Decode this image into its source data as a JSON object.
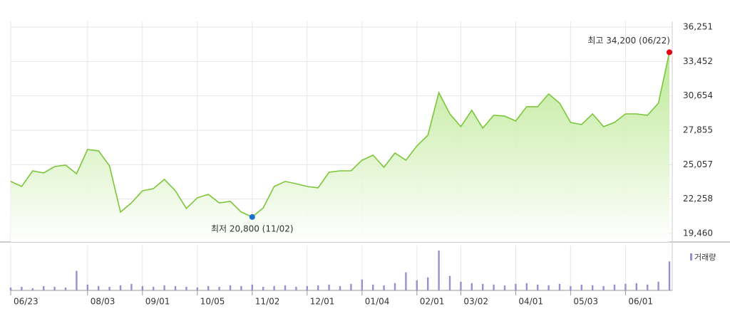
{
  "chart_data": {
    "type": "line",
    "categories": [
      "06/23",
      null,
      null,
      null,
      null,
      null,
      null,
      "08/03",
      null,
      null,
      null,
      null,
      "09/01",
      null,
      null,
      null,
      null,
      "10/05",
      null,
      null,
      null,
      null,
      "11/02",
      null,
      null,
      null,
      null,
      "12/01",
      null,
      null,
      null,
      null,
      "01/04",
      null,
      null,
      null,
      null,
      "02/01",
      null,
      null,
      null,
      "03/02",
      null,
      null,
      null,
      null,
      "04/01",
      null,
      null,
      null,
      null,
      "05/03",
      null,
      null,
      null,
      null,
      "06/01",
      null,
      null,
      null,
      null
    ],
    "values": [
      23690,
      23280,
      24555,
      24380,
      24900,
      25020,
      24320,
      26290,
      26180,
      24960,
      21200,
      21950,
      22930,
      23110,
      23860,
      22930,
      21490,
      22360,
      22640,
      21950,
      22070,
      21200,
      20800,
      21540,
      23280,
      23690,
      23510,
      23280,
      23170,
      24440,
      24555,
      24555,
      25420,
      25830,
      24845,
      26000,
      25420,
      26580,
      27450,
      30920,
      29190,
      28150,
      29480,
      28030,
      29070,
      29010,
      28610,
      29770,
      29770,
      30810,
      30060,
      28490,
      28320,
      29190,
      28150,
      28490,
      29190,
      29190,
      29070,
      30060,
      34200
    ],
    "color": "#7cc63a",
    "ylim": [
      19460,
      36251
    ],
    "yticks": [
      {
        "value": 36251,
        "label": "36,251"
      },
      {
        "value": 33452,
        "label": "33,452"
      },
      {
        "value": 30654,
        "label": "30,654"
      },
      {
        "value": 27855,
        "label": "27,855"
      },
      {
        "value": 25057,
        "label": "25,057"
      },
      {
        "value": 22258,
        "label": "22,258"
      },
      {
        "value": 19460,
        "label": "19,460"
      }
    ],
    "grid": true,
    "annotations": [
      {
        "text": "최고 34,200 (06/22)",
        "color": "#e60012"
      },
      {
        "text": "최저 20,800 (11/02)",
        "color": "#1a6fd0"
      }
    ],
    "volume": {
      "name": "거래량",
      "color": "#9b8fd0",
      "values": [
        4,
        5,
        3,
        6,
        5,
        4,
        27,
        8,
        6,
        5,
        7,
        9,
        6,
        5,
        7,
        6,
        5,
        4,
        6,
        5,
        7,
        6,
        8,
        5,
        6,
        7,
        5,
        6,
        7,
        8,
        6,
        9,
        15,
        8,
        7,
        10,
        25,
        14,
        18,
        55,
        20,
        12,
        10,
        9,
        8,
        7,
        9,
        10,
        8,
        7,
        9,
        6,
        8,
        7,
        6,
        8,
        9,
        10,
        8,
        12,
        40
      ]
    }
  }
}
